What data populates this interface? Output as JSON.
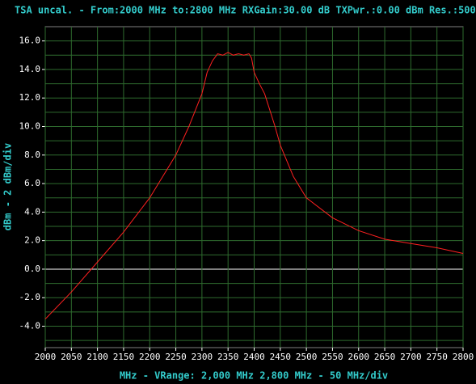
{
  "chart_data": {
    "type": "line",
    "title": "TSA uncal. - From:2000 MHz to:2800 MHz RXGain:30.00 dB TXPwr.:0.00 dBm Res.:500",
    "x_label": "MHz - VRange: 2,000 MHz 2,800 MHz - 50 MHz/div",
    "y_label": "dBm - 2 dBm/div",
    "x": [
      2000,
      2050,
      2100,
      2150,
      2200,
      2250,
      2275,
      2300,
      2310,
      2320,
      2330,
      2340,
      2350,
      2360,
      2370,
      2380,
      2390,
      2395,
      2400,
      2410,
      2420,
      2440,
      2450,
      2475,
      2500,
      2550,
      2600,
      2650,
      2700,
      2750,
      2800
    ],
    "series": [
      {
        "name": "Trace",
        "color": "#ff2020",
        "values": [
          -3.5,
          -1.6,
          0.5,
          2.6,
          5.0,
          8.0,
          10.0,
          12.3,
          13.8,
          14.6,
          15.1,
          15.0,
          15.2,
          15.0,
          15.1,
          15.0,
          15.1,
          14.8,
          13.8,
          13.0,
          12.3,
          10.0,
          8.7,
          6.5,
          5.0,
          3.6,
          2.7,
          2.1,
          1.8,
          1.5,
          1.1
        ]
      }
    ],
    "xlim": [
      2000,
      2800
    ],
    "xticks": [
      2000,
      2050,
      2100,
      2150,
      2200,
      2250,
      2300,
      2350,
      2400,
      2450,
      2500,
      2550,
      2600,
      2650,
      2700,
      2750,
      2800
    ],
    "ylim": [
      -5.5,
      17
    ],
    "yticks": [
      {
        "value": -4,
        "label": "-4.0"
      },
      {
        "value": -2,
        "label": "-2.0"
      },
      {
        "value": 0,
        "label": "0.0"
      },
      {
        "value": 2,
        "label": "2.0"
      },
      {
        "value": 4,
        "label": "4.0"
      },
      {
        "value": 6,
        "label": "6.0"
      },
      {
        "value": 8,
        "label": "8.0"
      },
      {
        "value": 10,
        "label": "10.0"
      },
      {
        "value": 12,
        "label": "12.0"
      },
      {
        "value": 14,
        "label": "14.0"
      },
      {
        "value": 16,
        "label": "16.0"
      }
    ],
    "y_minor_grid": [
      -5,
      -3,
      -1,
      1,
      3,
      5,
      7,
      9,
      11,
      13,
      15
    ],
    "grid": true,
    "grid_color": "#2e6b2e",
    "zero_line_color": "#ffffff"
  }
}
